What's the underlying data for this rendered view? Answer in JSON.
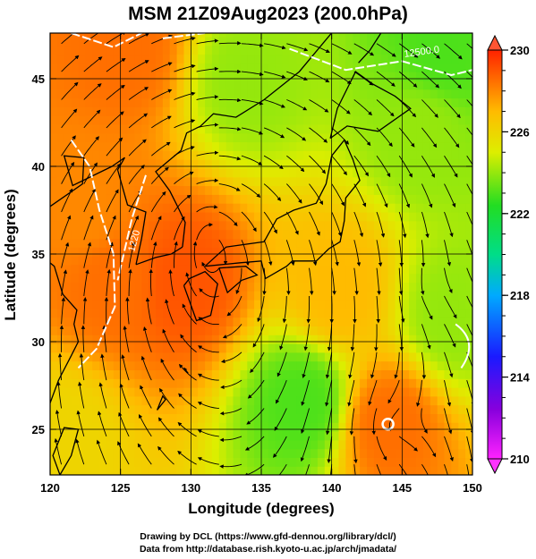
{
  "title": "MSM 21Z09Aug2023 (200.0hPa)",
  "axes": {
    "xlabel": "Longitude (degrees)",
    "ylabel": "Latitude  (degrees)",
    "xlim": [
      120,
      150
    ],
    "ylim": [
      22.4,
      47.6
    ],
    "x_ticks": [
      "120",
      "125",
      "130",
      "135",
      "140",
      "145",
      "150"
    ],
    "y_ticks": [
      "25",
      "30",
      "35",
      "40",
      "45"
    ]
  },
  "colorbar": {
    "min": 210,
    "max": 230,
    "tick_labels": [
      "230",
      "226",
      "222",
      "218",
      "214",
      "210"
    ]
  },
  "contour_labels": [
    "12500.0",
    "1220"
  ],
  "credits": {
    "line1": "Drawing by DCL (https://www.gfd-dennou.org/library/dcl/)",
    "line2": "Data from http://database.rish.kyoto-u.ac.jp/arch/jmadata/"
  },
  "chart_data": {
    "type": "heatmap",
    "title": "MSM 21Z09Aug2023 (200.0hPa)",
    "xlabel": "Longitude (degrees)",
    "ylabel": "Latitude  (degrees)",
    "xlim": [
      120,
      150
    ],
    "ylim": [
      22.4,
      47.6
    ],
    "colorbar_range": [
      210,
      230
    ],
    "field_features": [
      {
        "lon": 124.5,
        "lat": 33.5,
        "value": 228.5
      },
      {
        "lon": 129.5,
        "lat": 33.5,
        "value": 229
      },
      {
        "lon": 122.5,
        "lat": 37.5,
        "value": 228
      },
      {
        "lon": 125.5,
        "lat": 46.8,
        "value": 228.5
      },
      {
        "lon": 140.5,
        "lat": 33.0,
        "value": 227
      },
      {
        "lon": 146.5,
        "lat": 42.0,
        "value": 224
      },
      {
        "lon": 138.0,
        "lat": 26.5,
        "value": 223
      },
      {
        "lon": 144.0,
        "lat": 25.3,
        "value": 228.5
      },
      {
        "lon": 148.5,
        "lat": 31.5,
        "value": 224
      },
      {
        "lon": 148.0,
        "lat": 46.5,
        "value": 223
      },
      {
        "lon": 134.0,
        "lat": 45.0,
        "value": 224
      },
      {
        "lon": 121.0,
        "lat": 24.5,
        "value": 226
      }
    ],
    "grid": true
  }
}
